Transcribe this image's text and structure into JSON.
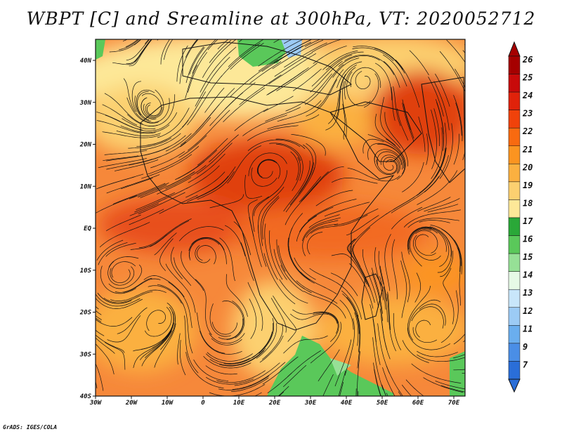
{
  "title": "WBPT [C] and Sreamline at 300hPa, VT: 2020052712",
  "credit": "GrADS: IGES/COLA",
  "lon_ticks": [
    "30W",
    "20W",
    "10W",
    "0",
    "10E",
    "20E",
    "30E",
    "40E",
    "50E",
    "60E",
    "70E"
  ],
  "lat_ticks": [
    "40N",
    "30N",
    "20N",
    "10N",
    "EQ",
    "10S",
    "20S",
    "30S",
    "40S"
  ],
  "colorbar": {
    "labels": [
      "26",
      "25",
      "24",
      "23",
      "22",
      "21",
      "20",
      "19",
      "18",
      "17",
      "16",
      "15",
      "14",
      "13",
      "12",
      "11",
      "9",
      "7"
    ],
    "colors": [
      "#a50000",
      "#c80a0a",
      "#e0220a",
      "#f0420a",
      "#f86a10",
      "#fb9420",
      "#fbb040",
      "#fcd070",
      "#fde898",
      "#2aa838",
      "#5ac85a",
      "#96e096",
      "#e6fae6",
      "#c8e6fa",
      "#9ccbf5",
      "#6aaeee",
      "#4a8ee6",
      "#2a6ed8"
    ],
    "top_color": "#a50000",
    "bottom_color": "#2a6ed8"
  }
}
